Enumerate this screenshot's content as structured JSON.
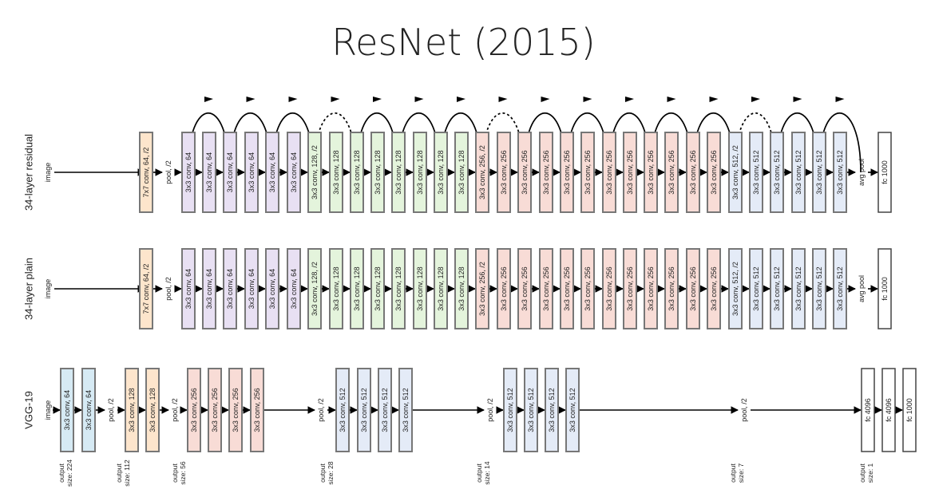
{
  "title": "ResNet (2015)",
  "colors": {
    "conv7": "#fde5cc",
    "conv64": "#e8e0f3",
    "conv128": "#e4f4dc",
    "conv256": "#f8dcd6",
    "conv512": "#e4ebf7",
    "vgg64": "#d6eaf4",
    "vgg128": "#fde5cc",
    "fc": "#ffffff",
    "stroke": "#777777"
  },
  "rows": [
    {
      "label": "34-layer residual",
      "input": "image",
      "layers": [
        "7x7 conv, 64, /2",
        "pool, /2",
        "3x3 conv, 64",
        "3x3 conv, 64",
        "3x3 conv, 64",
        "3x3 conv, 64",
        "3x3 conv, 64",
        "3x3 conv, 64",
        "3x3 conv, 128, /2",
        "3x3 conv, 128",
        "3x3 conv, 128",
        "3x3 conv, 128",
        "3x3 conv, 128",
        "3x3 conv, 128",
        "3x3 conv, 128",
        "3x3 conv, 128",
        "3x3 conv, 256, /2",
        "3x3 conv, 256",
        "3x3 conv, 256",
        "3x3 conv, 256",
        "3x3 conv, 256",
        "3x3 conv, 256",
        "3x3 conv, 256",
        "3x3 conv, 256",
        "3x3 conv, 256",
        "3x3 conv, 256",
        "3x3 conv, 256",
        "3x3 conv, 256",
        "3x3 conv, 512, /2",
        "3x3 conv, 512",
        "3x3 conv, 512",
        "3x3 conv, 512",
        "3x3 conv, 512",
        "3x3 conv, 512",
        "avg pool",
        "fc 1000"
      ]
    },
    {
      "label": "34-layer plain",
      "input": "image",
      "layers": [
        "7x7 conv, 64, /2",
        "pool, /2",
        "3x3 conv, 64",
        "3x3 conv, 64",
        "3x3 conv, 64",
        "3x3 conv, 64",
        "3x3 conv, 64",
        "3x3 conv, 64",
        "3x3 conv, 128, /2",
        "3x3 conv, 128",
        "3x3 conv, 128",
        "3x3 conv, 128",
        "3x3 conv, 128",
        "3x3 conv, 128",
        "3x3 conv, 128",
        "3x3 conv, 128",
        "3x3 conv, 256, /2",
        "3x3 conv, 256",
        "3x3 conv, 256",
        "3x3 conv, 256",
        "3x3 conv, 256",
        "3x3 conv, 256",
        "3x3 conv, 256",
        "3x3 conv, 256",
        "3x3 conv, 256",
        "3x3 conv, 256",
        "3x3 conv, 256",
        "3x3 conv, 256",
        "3x3 conv, 512, /2",
        "3x3 conv, 512",
        "3x3 conv, 512",
        "3x3 conv, 512",
        "3x3 conv, 512",
        "3x3 conv, 512",
        "avg pool",
        "fc 1000"
      ]
    },
    {
      "label": "VGG-19",
      "input": "image",
      "layers": [
        "3x3 conv, 64",
        "3x3 conv, 64",
        "pool, /2",
        "3x3 conv, 128",
        "3x3 conv, 128",
        "pool, /2",
        "3x3 conv, 256",
        "3x3 conv, 256",
        "3x3 conv, 256",
        "3x3 conv, 256",
        "pool, /2",
        "3x3 conv, 512",
        "3x3 conv, 512",
        "3x3 conv, 512",
        "3x3 conv, 512",
        "pool, /2",
        "3x3 conv, 512",
        "3x3 conv, 512",
        "3x3 conv, 512",
        "3x3 conv, 512",
        "pool, /2",
        "fc 4096",
        "fc 4096",
        "fc 1000"
      ]
    }
  ],
  "output_sizes": [
    "output size: 224",
    "output size: 112",
    "output size: 56",
    "output size: 28",
    "output size: 14",
    "output size: 7",
    "output size: 1"
  ],
  "residual_shortcuts": [
    "solid",
    "solid",
    "solid",
    "dashed",
    "solid",
    "solid",
    "solid",
    "dashed",
    "solid",
    "solid",
    "solid",
    "solid",
    "solid",
    "dashed",
    "solid",
    "solid"
  ]
}
